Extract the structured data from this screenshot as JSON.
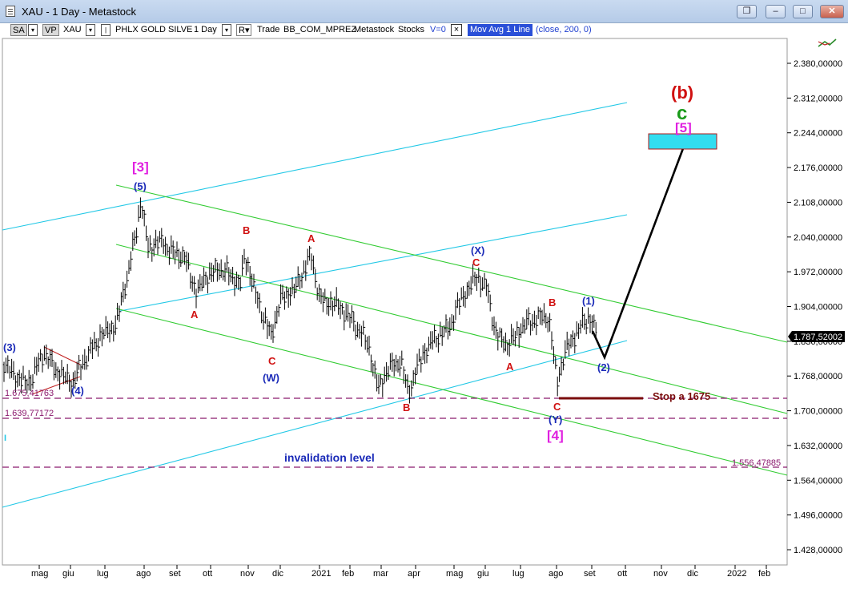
{
  "window": {
    "title": "XAU - 1 Day - Metastock",
    "buttons": [
      "restore-icon",
      "minimize-icon",
      "maximize-icon",
      "close-icon"
    ]
  },
  "toolbar": {
    "sa": "SA",
    "vp": "VP",
    "symbol": "XAU",
    "name": "PHLX GOLD SILVE",
    "interval": "1 Day",
    "r": "R",
    "mode": "Trade",
    "template": "BB_COM_MPREZ",
    "source": "Metastock",
    "type": "Stocks",
    "v": "V=0",
    "x": "×",
    "indicator": "Mov Avg 1 Line",
    "params": "(close, 200, 0)"
  },
  "price_axis": {
    "ticks": [
      "2.380,00000",
      "2.312,00000",
      "2.244,00000",
      "2.176,00000",
      "2.108,00000",
      "2.040,00000",
      "1.972,00000",
      "1.904,00000",
      "1.836,00000",
      "1.768,00000",
      "1.700,00000",
      "1.632,00000",
      "1.564,00000",
      "1.496,00000",
      "1.428,00000"
    ],
    "last_price": "1.787,52002"
  },
  "time_axis": {
    "months": [
      "mag",
      "giu",
      "lug",
      "ago",
      "set",
      "ott",
      "nov",
      "dic",
      "2021",
      "feb",
      "mar",
      "apr",
      "mag",
      "giu",
      "lug",
      "ago",
      "set",
      "ott",
      "nov",
      "dic",
      "2022",
      "feb"
    ]
  },
  "levels": {
    "level_1": "1.675,41763",
    "level_2": "1.639,77172",
    "level_3": "1.556,47885"
  },
  "annotations": {
    "stop": "Stop a 1675",
    "invalidation": "invalidation level",
    "b_paren": "(b)",
    "c_big": "c",
    "five_bracket": "[5]",
    "three_bracket": "[3]",
    "four_bracket": "[4]",
    "w": "(W)",
    "x": "(X)",
    "y": "(Y)",
    "one": "(1)",
    "two": "(2)",
    "three": "(3)",
    "four": "(4)",
    "five": "(5)",
    "a": "A",
    "b": "B",
    "c": "C",
    "i": "I"
  },
  "colors": {
    "bars": "#000000",
    "cyan_channel": "#22c8e6",
    "green_channel": "#33cc33",
    "dashed_level": "#8b1a6e",
    "red_label": "#d01010",
    "blue_label": "#1a2ab8",
    "magenta_label": "#e020e0",
    "target_box": "#33ddf0",
    "stop_line": "#7a0d0d"
  }
}
